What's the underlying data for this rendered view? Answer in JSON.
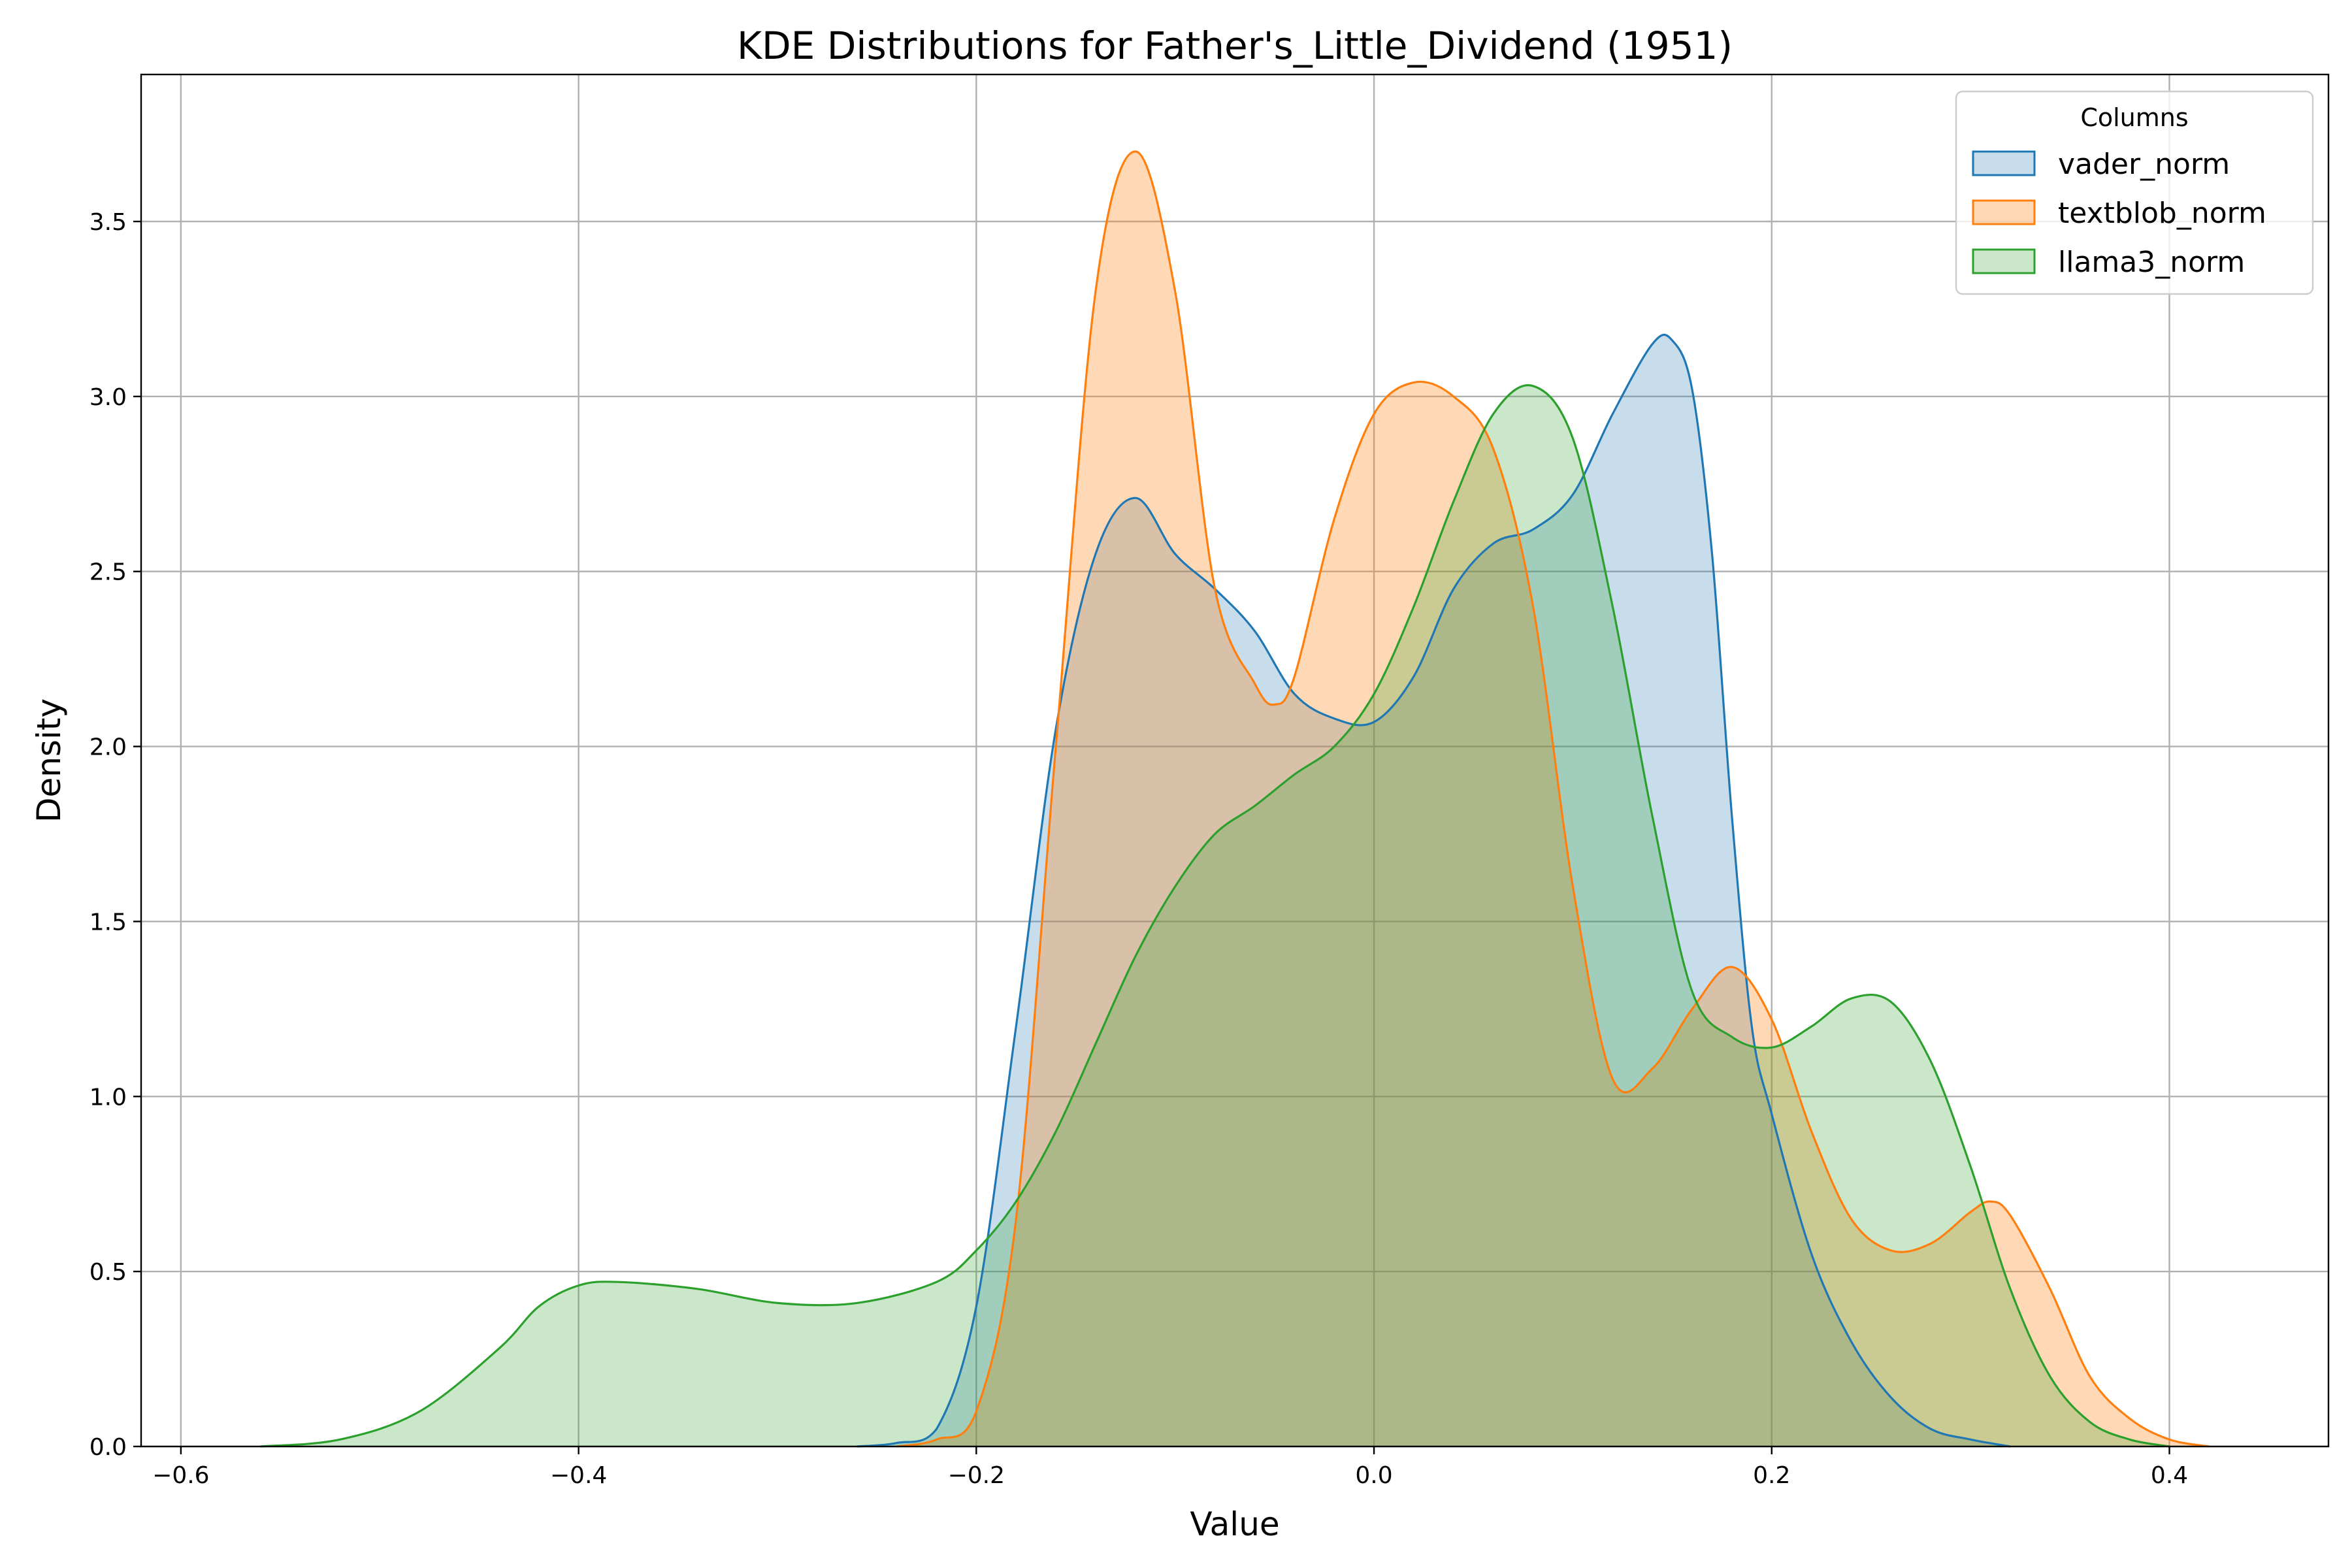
{
  "chart_data": {
    "type": "area",
    "title": "KDE Distributions for Father's_Little_Dividend (1951)",
    "xlabel": "Value",
    "ylabel": "Density",
    "xlim": [
      -0.62,
      0.48
    ],
    "ylim": [
      0,
      3.92
    ],
    "xticks": [
      -0.6,
      -0.4,
      -0.2,
      0.0,
      0.2,
      0.4
    ],
    "xtick_labels": [
      "−0.6",
      "−0.4",
      "−0.2",
      "0.0",
      "0.2",
      "0.4"
    ],
    "yticks": [
      0.0,
      0.5,
      1.0,
      1.5,
      2.0,
      2.5,
      3.0,
      3.5
    ],
    "ytick_labels": [
      "0.0",
      "0.5",
      "1.0",
      "1.5",
      "2.0",
      "2.5",
      "3.0",
      "3.5"
    ],
    "grid": true,
    "legend": {
      "title": "Columns",
      "position": "top-right"
    },
    "series": [
      {
        "name": "vader_norm",
        "color": "#1f77b4",
        "fill_opacity": 0.25,
        "points": [
          [
            -0.26,
            0
          ],
          [
            -0.24,
            0.01
          ],
          [
            -0.22,
            0.05
          ],
          [
            -0.2,
            0.4
          ],
          [
            -0.18,
            1.2
          ],
          [
            -0.16,
            2.05
          ],
          [
            -0.14,
            2.55
          ],
          [
            -0.12,
            2.71
          ],
          [
            -0.1,
            2.55
          ],
          [
            -0.08,
            2.45
          ],
          [
            -0.06,
            2.33
          ],
          [
            -0.04,
            2.15
          ],
          [
            -0.02,
            2.08
          ],
          [
            0.0,
            2.07
          ],
          [
            0.02,
            2.2
          ],
          [
            0.04,
            2.45
          ],
          [
            0.06,
            2.58
          ],
          [
            0.08,
            2.62
          ],
          [
            0.1,
            2.72
          ],
          [
            0.12,
            2.95
          ],
          [
            0.14,
            3.15
          ],
          [
            0.15,
            3.16
          ],
          [
            0.16,
            3.02
          ],
          [
            0.17,
            2.55
          ],
          [
            0.18,
            1.8
          ],
          [
            0.19,
            1.2
          ],
          [
            0.2,
            0.95
          ],
          [
            0.22,
            0.55
          ],
          [
            0.24,
            0.3
          ],
          [
            0.26,
            0.14
          ],
          [
            0.28,
            0.05
          ],
          [
            0.3,
            0.02
          ],
          [
            0.32,
            0
          ]
        ]
      },
      {
        "name": "textblob_norm",
        "color": "#ff7f0e",
        "fill_opacity": 0.3,
        "points": [
          [
            -0.24,
            0
          ],
          [
            -0.22,
            0.02
          ],
          [
            -0.2,
            0.1
          ],
          [
            -0.18,
            0.65
          ],
          [
            -0.16,
            2.0
          ],
          [
            -0.14,
            3.3
          ],
          [
            -0.12,
            3.7
          ],
          [
            -0.1,
            3.3
          ],
          [
            -0.08,
            2.45
          ],
          [
            -0.06,
            2.18
          ],
          [
            -0.05,
            2.12
          ],
          [
            -0.04,
            2.2
          ],
          [
            -0.02,
            2.65
          ],
          [
            0.0,
            2.95
          ],
          [
            0.02,
            3.04
          ],
          [
            0.04,
            3.0
          ],
          [
            0.06,
            2.85
          ],
          [
            0.08,
            2.4
          ],
          [
            0.1,
            1.6
          ],
          [
            0.12,
            1.05
          ],
          [
            0.14,
            1.08
          ],
          [
            0.16,
            1.25
          ],
          [
            0.18,
            1.37
          ],
          [
            0.2,
            1.22
          ],
          [
            0.22,
            0.9
          ],
          [
            0.24,
            0.65
          ],
          [
            0.26,
            0.56
          ],
          [
            0.28,
            0.58
          ],
          [
            0.3,
            0.67
          ],
          [
            0.31,
            0.7
          ],
          [
            0.32,
            0.66
          ],
          [
            0.34,
            0.45
          ],
          [
            0.36,
            0.2
          ],
          [
            0.38,
            0.08
          ],
          [
            0.4,
            0.02
          ],
          [
            0.42,
            0
          ]
        ]
      },
      {
        "name": "llama3_norm",
        "color": "#2ca02c",
        "fill_opacity": 0.25,
        "points": [
          [
            -0.56,
            0
          ],
          [
            -0.52,
            0.02
          ],
          [
            -0.48,
            0.1
          ],
          [
            -0.44,
            0.28
          ],
          [
            -0.42,
            0.4
          ],
          [
            -0.4,
            0.46
          ],
          [
            -0.38,
            0.47
          ],
          [
            -0.34,
            0.45
          ],
          [
            -0.3,
            0.41
          ],
          [
            -0.26,
            0.41
          ],
          [
            -0.22,
            0.47
          ],
          [
            -0.2,
            0.56
          ],
          [
            -0.18,
            0.7
          ],
          [
            -0.16,
            0.9
          ],
          [
            -0.14,
            1.15
          ],
          [
            -0.12,
            1.4
          ],
          [
            -0.1,
            1.6
          ],
          [
            -0.08,
            1.75
          ],
          [
            -0.06,
            1.83
          ],
          [
            -0.04,
            1.92
          ],
          [
            -0.02,
            2.0
          ],
          [
            0.0,
            2.15
          ],
          [
            0.02,
            2.4
          ],
          [
            0.04,
            2.7
          ],
          [
            0.06,
            2.95
          ],
          [
            0.08,
            3.03
          ],
          [
            0.1,
            2.88
          ],
          [
            0.12,
            2.4
          ],
          [
            0.14,
            1.8
          ],
          [
            0.16,
            1.3
          ],
          [
            0.18,
            1.17
          ],
          [
            0.2,
            1.14
          ],
          [
            0.22,
            1.2
          ],
          [
            0.24,
            1.28
          ],
          [
            0.26,
            1.27
          ],
          [
            0.28,
            1.1
          ],
          [
            0.3,
            0.8
          ],
          [
            0.32,
            0.45
          ],
          [
            0.34,
            0.2
          ],
          [
            0.36,
            0.07
          ],
          [
            0.38,
            0.02
          ],
          [
            0.4,
            0
          ]
        ]
      }
    ]
  }
}
